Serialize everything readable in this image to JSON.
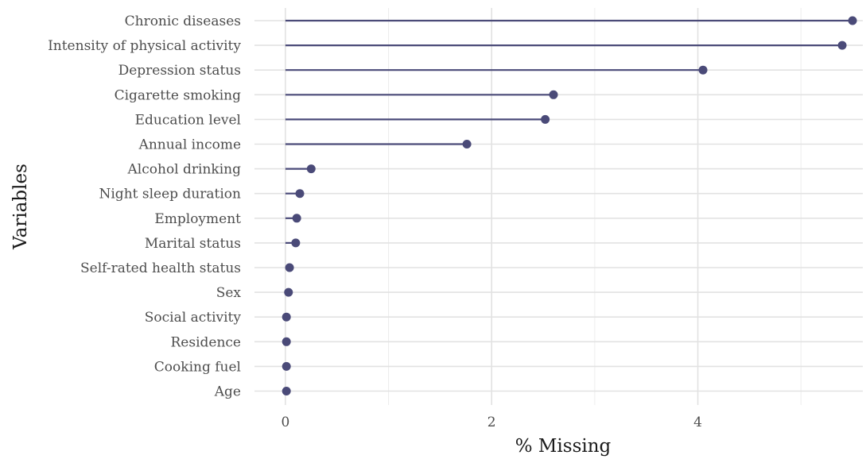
{
  "chart_data": {
    "type": "lollipop",
    "xlabel": "% Missing",
    "ylabel": "Variables",
    "xlim": [
      -0.3,
      5.6
    ],
    "xticks": [
      0,
      2,
      4
    ],
    "xtick_labels": [
      "0",
      "2",
      "4"
    ],
    "grid": true,
    "color": "#4a4a78",
    "categories": [
      "Chronic diseases",
      "Intensity of physical activity",
      "Depression status",
      "Cigarette smoking",
      "Education level",
      "Annual income",
      "Alcohol drinking",
      "Night sleep duration",
      "Employment",
      "Marital status",
      "Self-rated health status",
      "Sex",
      "Social activity",
      "Residence",
      "Cooking fuel",
      "Age"
    ],
    "values": [
      5.5,
      5.4,
      4.05,
      2.6,
      2.52,
      1.76,
      0.25,
      0.14,
      0.11,
      0.1,
      0.04,
      0.03,
      0.01,
      0.01,
      0.01,
      0.01
    ]
  }
}
